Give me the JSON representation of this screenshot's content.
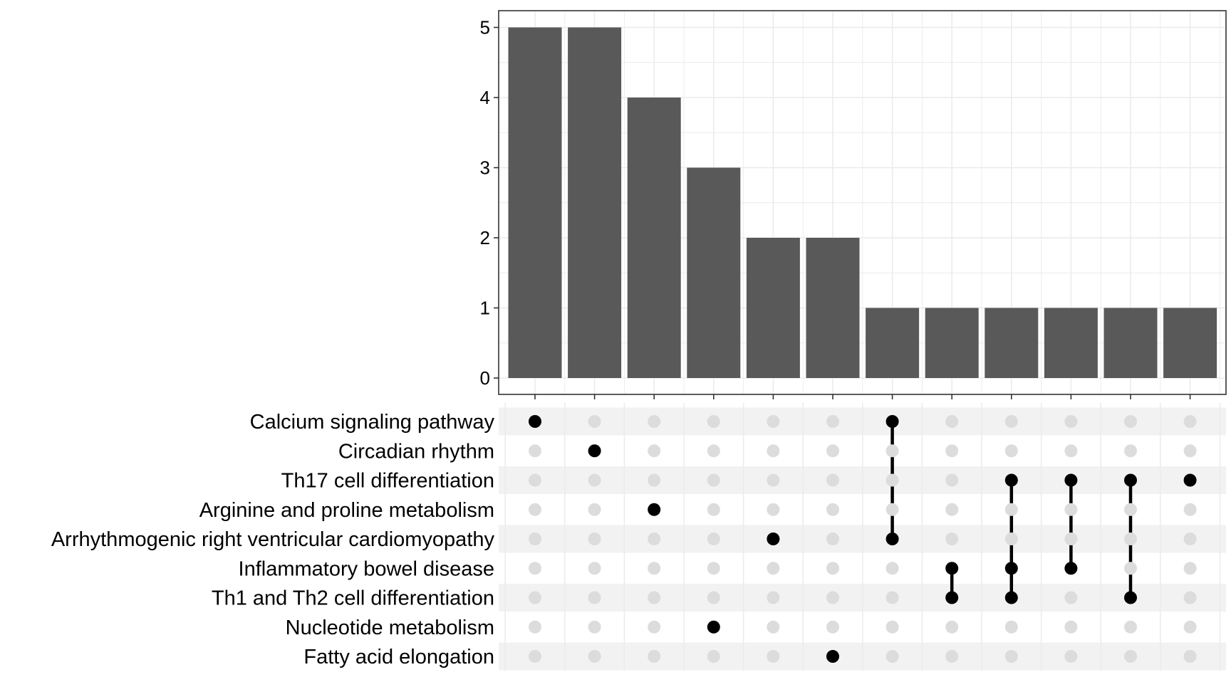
{
  "chart_data": {
    "type": "bar",
    "variant": "upset",
    "title": "",
    "xlabel": "",
    "ylabel": "",
    "ylim": [
      0,
      5.25
    ],
    "yticks": [
      0,
      1,
      2,
      3,
      4,
      5
    ],
    "grid": true,
    "sets": [
      "Calcium signaling pathway",
      "Circadian rhythm",
      "Th17 cell differentiation",
      "Arginine and proline metabolism",
      "Arrhythmogenic right ventricular cardiomyopathy",
      "Inflammatory bowel disease",
      "Th1 and Th2 cell differentiation",
      "Nucleotide metabolism",
      "Fatty acid elongation"
    ],
    "intersections": [
      {
        "value": 5,
        "members": [
          "Calcium signaling pathway"
        ]
      },
      {
        "value": 5,
        "members": [
          "Circadian rhythm"
        ]
      },
      {
        "value": 4,
        "members": [
          "Arginine and proline metabolism"
        ]
      },
      {
        "value": 3,
        "members": [
          "Nucleotide metabolism"
        ]
      },
      {
        "value": 2,
        "members": [
          "Arrhythmogenic right ventricular cardiomyopathy"
        ]
      },
      {
        "value": 2,
        "members": [
          "Fatty acid elongation"
        ]
      },
      {
        "value": 1,
        "members": [
          "Calcium signaling pathway",
          "Arrhythmogenic right ventricular cardiomyopathy"
        ]
      },
      {
        "value": 1,
        "members": [
          "Inflammatory bowel disease",
          "Th1 and Th2 cell differentiation"
        ]
      },
      {
        "value": 1,
        "members": [
          "Th17 cell differentiation",
          "Inflammatory bowel disease",
          "Th1 and Th2 cell differentiation"
        ]
      },
      {
        "value": 1,
        "members": [
          "Th17 cell differentiation",
          "Inflammatory bowel disease"
        ]
      },
      {
        "value": 1,
        "members": [
          "Th17 cell differentiation",
          "Th1 and Th2 cell differentiation"
        ]
      },
      {
        "value": 1,
        "members": [
          "Th17 cell differentiation"
        ]
      }
    ],
    "colors": {
      "bar": "#595959",
      "dot_active": "#000000",
      "dot_inactive": "#dcdcdc",
      "grid": "#ebebeb",
      "stripe": "#f2f2f2",
      "axis": "#333333"
    }
  }
}
